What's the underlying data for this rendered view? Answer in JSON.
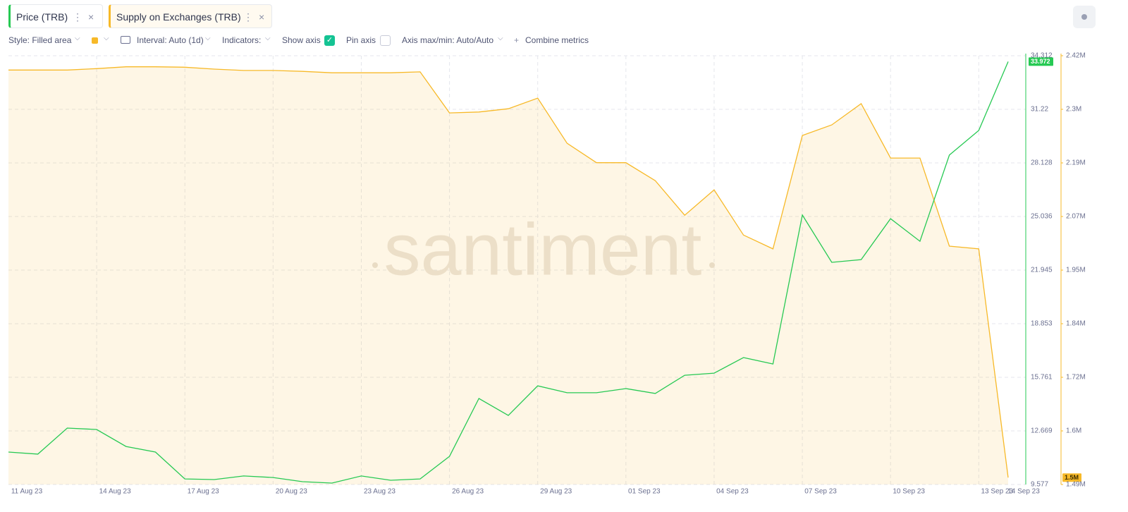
{
  "ui": {
    "toolbar": {
      "style": "Style: Filled area",
      "interval": "Interval: Auto (1d)",
      "indicators": "Indicators:",
      "show_axis": "Show axis",
      "show_axis_checked": true,
      "pin_axis": "Pin axis",
      "pin_axis_checked": false,
      "axis_minmax": "Axis max/min: Auto/Auto",
      "combine": "Combine metrics"
    },
    "watermark": "santiment"
  },
  "chart_data": {
    "type": "line",
    "grid": true,
    "categories": [
      "11 Aug 23",
      null,
      null,
      "14 Aug 23",
      null,
      null,
      "17 Aug 23",
      null,
      null,
      "20 Aug 23",
      null,
      null,
      "23 Aug 23",
      null,
      null,
      "26 Aug 23",
      null,
      null,
      "29 Aug 23",
      null,
      null,
      "01 Sep 23",
      null,
      null,
      "04 Sep 23",
      null,
      null,
      "07 Sep 23",
      null,
      null,
      "10 Sep 23",
      null,
      null,
      "13 Sep 23",
      "14 Sep 23"
    ],
    "ylim": [
      9.577,
      34.312
    ],
    "yticks": [
      9.577,
      12.669,
      15.761,
      18.853,
      21.945,
      25.036,
      28.128,
      31.22,
      34.312
    ],
    "y2lim": [
      1489000,
      2419000
    ],
    "y2ticks": [
      {
        "value": 1489000,
        "label": "1.49M"
      },
      {
        "value": 1605250,
        "label": "1.6M"
      },
      {
        "value": 1721500,
        "label": "1.72M"
      },
      {
        "value": 1837750,
        "label": "1.84M"
      },
      {
        "value": 1954000,
        "label": "1.95M"
      },
      {
        "value": 2070250,
        "label": "2.07M"
      },
      {
        "value": 2186500,
        "label": "2.19M"
      },
      {
        "value": 2302750,
        "label": "2.3M"
      },
      {
        "value": 2419000,
        "label": "2.42M"
      }
    ],
    "series": [
      {
        "name": "Price (TRB)",
        "color": "#26c953",
        "style": "line",
        "values": [
          11.45,
          11.33,
          12.83,
          12.75,
          11.77,
          11.45,
          9.9,
          9.86,
          10.07,
          9.98,
          9.74,
          9.66,
          10.07,
          9.82,
          9.9,
          11.2,
          14.54,
          13.56,
          15.27,
          14.87,
          14.87,
          15.11,
          14.83,
          15.88,
          16.0,
          16.9,
          16.53,
          25.12,
          22.39,
          22.55,
          24.91,
          23.61,
          28.58,
          30.0,
          33.972
        ]
      },
      {
        "name": "Supply on Exchanges (TRB)",
        "color": "#f7b928",
        "style": "area",
        "axis": "y2",
        "values": [
          2388000,
          2388000,
          2388000,
          2391000,
          2395000,
          2395000,
          2394000,
          2390000,
          2387000,
          2387000,
          2385000,
          2382000,
          2382000,
          2382000,
          2384000,
          2295000,
          2297000,
          2304000,
          2327000,
          2229000,
          2187000,
          2187000,
          2148000,
          2073000,
          2128000,
          2030000,
          2000000,
          2246000,
          2269000,
          2315000,
          2197000,
          2197000,
          2006000,
          2000000,
          1504000
        ],
        "value_labels": [
          null,
          null,
          null,
          null,
          null,
          null,
          null,
          null,
          null,
          null,
          null,
          null,
          null,
          null,
          null,
          null,
          null,
          null,
          null,
          null,
          null,
          null,
          null,
          null,
          null,
          null,
          null,
          null,
          null,
          null,
          null,
          null,
          null,
          null,
          "1.5M"
        ]
      }
    ]
  }
}
